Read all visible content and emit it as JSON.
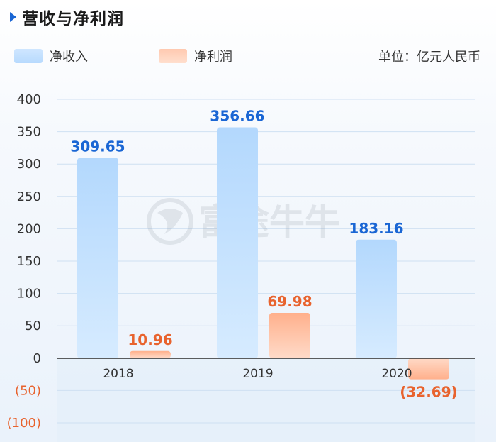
{
  "title": "营收与净利润",
  "unit": "单位：亿元人民币",
  "watermark": "富途牛牛",
  "colors": {
    "accent": "#1a66d4",
    "revenue_bar": "#b7dafe",
    "profit_bar": "#ffb896",
    "revenue_label": "#1a66d4",
    "profit_label": "#e8632e",
    "negative_tick": "#e8632e"
  },
  "chart_data": {
    "type": "bar",
    "title": "营收与净利润",
    "xlabel": "",
    "ylabel": "",
    "unit": "亿元人民币",
    "categories": [
      "2018",
      "2019",
      "2020"
    ],
    "series": [
      {
        "name": "净收入",
        "values": [
          309.65,
          356.66,
          183.16
        ],
        "labels": [
          "309.65",
          "356.66",
          "183.16"
        ]
      },
      {
        "name": "净利润",
        "values": [
          10.96,
          69.98,
          -32.69
        ],
        "labels": [
          "10.96",
          "69.98",
          "(32.69)"
        ]
      }
    ],
    "ylim": [
      -100,
      400
    ],
    "yticks": [
      400,
      350,
      300,
      250,
      200,
      150,
      100,
      50,
      0,
      -50,
      -100
    ],
    "ytick_labels": [
      "400",
      "350",
      "300",
      "250",
      "200",
      "150",
      "100",
      "50",
      "0",
      "(50)",
      "(100)"
    ],
    "grid": true,
    "legend": "top-left"
  }
}
